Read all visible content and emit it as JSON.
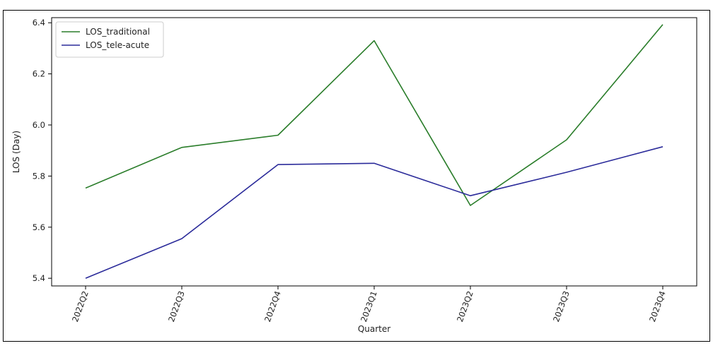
{
  "chart_data": {
    "type": "line",
    "title": "",
    "xlabel": "Quarter",
    "ylabel": "LOS (Day)",
    "categories": [
      "2022Q2",
      "2022Q3",
      "2022Q4",
      "2023Q1",
      "2023Q2",
      "2023Q3",
      "2023Q4"
    ],
    "ylim": [
      5.37,
      6.42
    ],
    "yticks": [
      5.4,
      5.6,
      5.8,
      6.0,
      6.2,
      6.4
    ],
    "ytick_labels": [
      "5.4",
      "5.6",
      "5.8",
      "6.0",
      "6.2",
      "6.4"
    ],
    "grid": false,
    "legend_position": "upper-left",
    "series": [
      {
        "name": "LOS_traditional",
        "color": "#2a7d2a",
        "values": [
          5.753,
          5.912,
          5.96,
          6.33,
          5.685,
          5.942,
          6.393
        ]
      },
      {
        "name": "LOS_tele-acute",
        "color": "#2b2b9a",
        "values": [
          5.4,
          5.555,
          5.845,
          5.85,
          5.723,
          5.815,
          5.915
        ]
      }
    ]
  }
}
